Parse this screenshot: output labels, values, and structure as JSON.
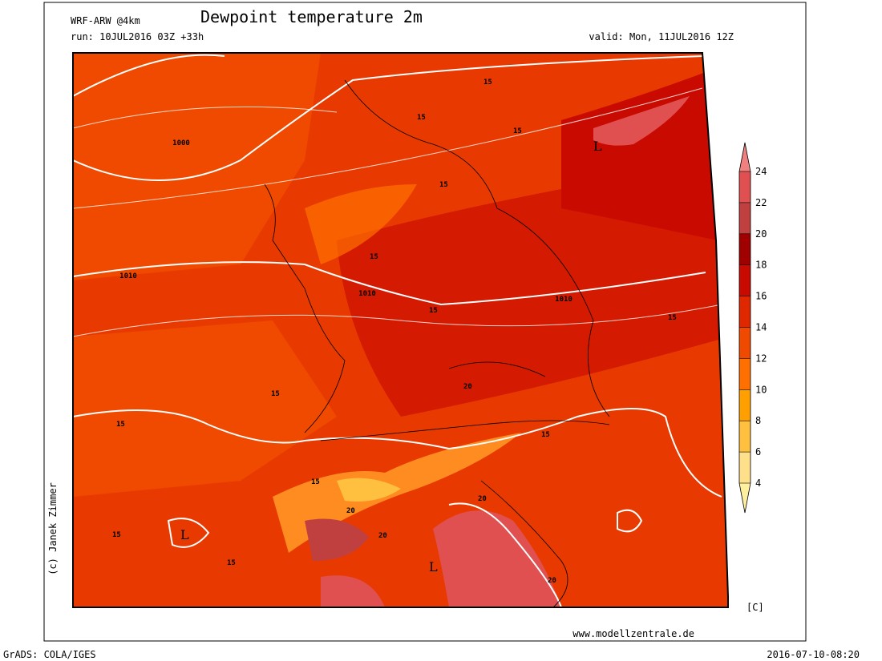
{
  "header": {
    "model": "WRF-ARW @4km",
    "title": "Dewpoint temperature 2m",
    "run": "run: 10JUL2016 03Z +33h",
    "valid": "valid: Mon, 11JUL2016 12Z"
  },
  "colorbar": {
    "ticks": [
      4,
      6,
      8,
      10,
      12,
      14,
      16,
      18,
      20,
      22,
      24
    ],
    "unit": "[C]",
    "colors": [
      "#ffe08a",
      "#ffc040",
      "#ffa000",
      "#ff7000",
      "#f04a00",
      "#e02800",
      "#c80a00",
      "#a00000",
      "#c04040",
      "#e05050"
    ],
    "under_color": "#fff0a0",
    "over_color": "#f08080"
  },
  "map": {
    "isobar_labels": [
      1000,
      1010,
      1010,
      1010
    ],
    "dewpoint_labels": [
      15,
      15,
      15,
      15,
      15,
      15,
      15,
      15,
      20,
      15,
      15,
      15,
      20,
      20,
      20,
      15,
      15,
      20
    ],
    "lows": [
      "L",
      "L",
      "L"
    ]
  },
  "credit": "(c) Janek Zimmer",
  "website": "www.modellzentrale.de",
  "footer": {
    "software": "GrADS: COLA/IGES",
    "timestamp": "2016-07-10-08:20"
  }
}
